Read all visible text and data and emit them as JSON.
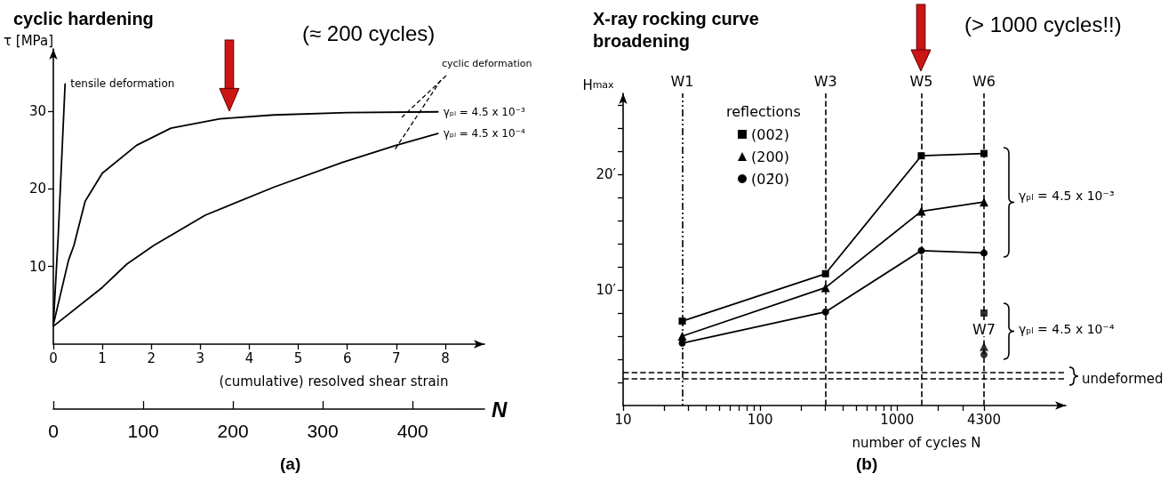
{
  "chart_data": [
    {
      "type": "line",
      "title": "cyclic hardening",
      "xlabel": "(cumulative) resolved shear strain",
      "x2label": "N",
      "ylabel": "τ [MPa]",
      "xlim": [
        0,
        8.8
      ],
      "xticks": [
        0,
        1,
        2,
        3,
        4,
        5,
        6,
        7,
        8
      ],
      "x2lim": [
        0,
        480
      ],
      "x2ticks": [
        0,
        100,
        200,
        300,
        400
      ],
      "ylim": [
        0,
        38
      ],
      "yticks": [
        10,
        20,
        30
      ],
      "legend": false,
      "grid": false,
      "marker": "none",
      "annotations": [
        "(≈ 200 cycles)",
        "cyclic deformation",
        "(a)"
      ],
      "series": [
        {
          "name": "tensile deformation",
          "color": "#000000",
          "x": [
            0,
            0.1,
            0.24
          ],
          "values": [
            2.5,
            14,
            33.5
          ]
        },
        {
          "name": "γₚₗ = 4.5 x 10⁻³",
          "color": "#000000",
          "x": [
            0,
            0.31,
            0.42,
            0.65,
            1,
            1.7,
            2.4,
            3.4,
            4.5,
            6,
            7.85
          ],
          "values": [
            2.5,
            10.8,
            12.7,
            18.4,
            22,
            25.6,
            27.8,
            29,
            29.5,
            29.8,
            29.9
          ]
        },
        {
          "name": "γₚₗ = 4.5 x 10⁻⁴",
          "color": "#000000",
          "x": [
            0,
            1,
            1.5,
            2.05,
            3.1,
            4.5,
            5.9,
            7,
            7.85
          ],
          "values": [
            2.3,
            7.3,
            10.3,
            12.7,
            16.6,
            20.2,
            23.4,
            25.6,
            27.1
          ]
        }
      ]
    },
    {
      "type": "line",
      "title": "X-ray rocking curve broadening",
      "xlabel": "number of cycles N",
      "ylabel": "H$_{max}$",
      "legend_title": "reflections",
      "log": "x",
      "xlim": [
        10,
        17000
      ],
      "xticks": [
        10,
        {
          "value": 20,
          "label": null
        },
        {
          "value": 30,
          "label": null
        },
        {
          "value": 40,
          "label": null
        },
        {
          "value": 50,
          "label": null
        },
        {
          "value": 60,
          "label": null
        },
        {
          "value": 70,
          "label": null
        },
        {
          "value": 80,
          "label": null
        },
        {
          "value": 90,
          "label": null
        },
        100,
        {
          "value": 200,
          "label": null
        },
        {
          "value": 300,
          "label": null
        },
        {
          "value": 400,
          "label": null
        },
        {
          "value": 500,
          "label": null
        },
        {
          "value": 600,
          "label": null
        },
        {
          "value": 700,
          "label": null
        },
        {
          "value": 800,
          "label": null
        },
        {
          "value": 900,
          "label": null
        },
        1000,
        {
          "value": 2000,
          "label": null
        },
        {
          "value": 3000,
          "label": null
        },
        4300
      ],
      "ylim": [
        0,
        27
      ],
      "yticks": [
        {
          "value": 2,
          "label": null
        },
        {
          "value": 4,
          "label": null
        },
        {
          "value": 6,
          "label": null
        },
        {
          "value": 8,
          "label": null
        },
        {
          "value": 10,
          "label": "10′"
        },
        {
          "value": 12,
          "label": null
        },
        {
          "value": 14,
          "label": null
        },
        {
          "value": 16,
          "label": null
        },
        {
          "value": 18,
          "label": null
        },
        {
          "value": 20,
          "label": "20′"
        },
        {
          "value": 22,
          "label": null
        },
        {
          "value": 24,
          "label": null
        },
        {
          "value": 26,
          "label": null
        }
      ],
      "legend": "top left",
      "grid": false,
      "ref_lines": [
        {
          "axis": "x",
          "value": 27,
          "label": "W1",
          "line_style": "dotted"
        },
        {
          "axis": "x",
          "value": 300,
          "label": "W3",
          "line_style": "dashed"
        },
        {
          "axis": "x",
          "value": 1500,
          "label": "W5",
          "line_style": "dashed"
        },
        {
          "axis": "x",
          "value": 4300,
          "label": "W6",
          "line_style": "dashed"
        },
        {
          "axis": "y",
          "value": 2.9,
          "line_style": "dashed"
        },
        {
          "axis": "y",
          "value": 2.3,
          "label": "undeformed",
          "line_style": "dashed"
        }
      ],
      "annotations": [
        "(> 1000 cycles!!)",
        "γₚₗ = 4.5 x 10⁻³",
        "γₚₗ = 4.5 x 10⁻⁴",
        {
          "text": "W7",
          "x": 4300,
          "y": 6.6
        },
        "(b)"
      ],
      "series": [
        {
          "name": "(002)",
          "color": "#000000",
          "marker": "square",
          "x": [
            27,
            300,
            1500,
            4300
          ],
          "values": [
            7.3,
            11.4,
            21.6,
            21.8
          ]
        },
        {
          "name": "(200)",
          "color": "#000000",
          "marker": "triangle",
          "x": [
            27,
            300,
            1500,
            4300
          ],
          "values": [
            6.0,
            10.2,
            16.8,
            17.6
          ]
        },
        {
          "name": "(02̄0)",
          "color": "#000000",
          "marker": "circle",
          "x": [
            27,
            300,
            1500,
            4300
          ],
          "values": [
            5.4,
            8.1,
            13.4,
            13.2
          ]
        },
        {
          "type": "scatter",
          "color": "#000000",
          "marker": "square",
          "x": [
            4300
          ],
          "values": [
            8.0
          ]
        },
        {
          "type": "scatter",
          "color": "#000000",
          "marker": "triangle",
          "x": [
            4300
          ],
          "values": [
            5.1
          ]
        },
        {
          "type": "scatter",
          "color": "#000000",
          "marker": "circle",
          "x": [
            4300
          ],
          "values": [
            4.4
          ]
        }
      ]
    }
  ]
}
